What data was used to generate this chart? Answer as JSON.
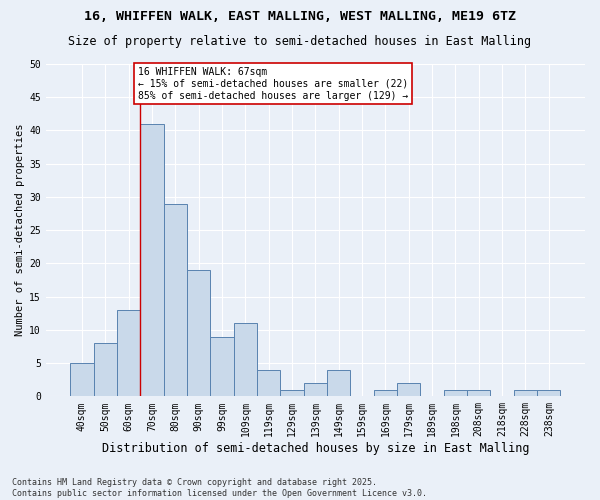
{
  "title1": "16, WHIFFEN WALK, EAST MALLING, WEST MALLING, ME19 6TZ",
  "title2": "Size of property relative to semi-detached houses in East Malling",
  "xlabel": "Distribution of semi-detached houses by size in East Malling",
  "ylabel": "Number of semi-detached properties",
  "categories": [
    "40sqm",
    "50sqm",
    "60sqm",
    "70sqm",
    "80sqm",
    "90sqm",
    "99sqm",
    "109sqm",
    "119sqm",
    "129sqm",
    "139sqm",
    "149sqm",
    "159sqm",
    "169sqm",
    "179sqm",
    "189sqm",
    "198sqm",
    "208sqm",
    "218sqm",
    "228sqm",
    "238sqm"
  ],
  "values": [
    5,
    8,
    13,
    41,
    29,
    19,
    9,
    11,
    4,
    1,
    2,
    4,
    0,
    1,
    2,
    0,
    1,
    1,
    0,
    1,
    1
  ],
  "bar_color": "#c9d9ea",
  "bar_edge_color": "#5882b0",
  "vline_x": 2.5,
  "vline_color": "#cc0000",
  "annotation_text": "16 WHIFFEN WALK: 67sqm\n← 15% of semi-detached houses are smaller (22)\n85% of semi-detached houses are larger (129) →",
  "annotation_box_color": "#ffffff",
  "annotation_box_edge": "#cc0000",
  "ylim": [
    0,
    50
  ],
  "yticks": [
    0,
    5,
    10,
    15,
    20,
    25,
    30,
    35,
    40,
    45,
    50
  ],
  "footnote": "Contains HM Land Registry data © Crown copyright and database right 2025.\nContains public sector information licensed under the Open Government Licence v3.0.",
  "bg_color": "#eaf0f8",
  "title1_fontsize": 9.5,
  "title2_fontsize": 8.5,
  "xlabel_fontsize": 8.5,
  "ylabel_fontsize": 7.5,
  "tick_fontsize": 7,
  "annotation_fontsize": 7,
  "footnote_fontsize": 6
}
